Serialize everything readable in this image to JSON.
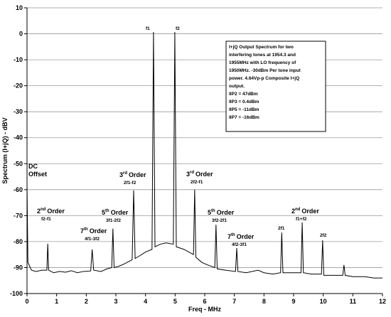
{
  "chart_data": {
    "type": "line",
    "x_label": "Freq - MHz",
    "y_label": "Spectrum (I+jQ) - dBV",
    "xlim": [
      0,
      12
    ],
    "xticks": [
      0,
      1,
      2,
      3,
      4,
      5,
      6,
      7,
      8,
      9,
      10,
      11,
      12
    ],
    "ylim": [
      -100,
      10
    ],
    "yticks": [
      10,
      0,
      -10,
      -20,
      -30,
      -40,
      -50,
      -60,
      -70,
      -80,
      -90,
      -100
    ],
    "grid": true,
    "series": [
      {
        "color": "#000000",
        "x": [
          0,
          0.03,
          0.15,
          0.3,
          0.5,
          0.67,
          0.7,
          0.73,
          0.9,
          1.1,
          1.3,
          1.5,
          1.7,
          1.9,
          2.15,
          2.2,
          2.25,
          2.5,
          2.7,
          2.86,
          2.9,
          2.94,
          3.1,
          3.3,
          3.55,
          3.6,
          3.65,
          3.8,
          4.0,
          4.22,
          4.27,
          4.32,
          4.5,
          4.7,
          4.94,
          4.99,
          5.04,
          5.3,
          5.62,
          5.66,
          5.7,
          5.9,
          6.1,
          6.34,
          6.38,
          6.42,
          6.7,
          7.04,
          7.08,
          7.12,
          7.4,
          7.8,
          8.0,
          8.3,
          8.56,
          8.6,
          8.64,
          8.9,
          9.25,
          9.29,
          9.33,
          9.6,
          9.94,
          9.98,
          10.02,
          10.3,
          10.66,
          10.7,
          10.74,
          11.0,
          11.4,
          11.7,
          12
        ],
        "values": [
          -58,
          -88,
          -91,
          -91.5,
          -91,
          -91,
          -80.8,
          -91,
          -92,
          -91.5,
          -91.8,
          -91.2,
          -92,
          -91.5,
          -91.3,
          -83,
          -91,
          -91.5,
          -90.5,
          -90,
          -75,
          -90,
          -89.5,
          -88.5,
          -87,
          -60.3,
          -86.5,
          -85.5,
          -84,
          -83,
          0.7,
          -82,
          -81,
          -80.5,
          -81,
          0.7,
          -82,
          -83,
          -85,
          -60,
          -86,
          -88,
          -89,
          -90,
          -73.5,
          -90.5,
          -91,
          -91.5,
          -82.5,
          -91.5,
          -92,
          -91,
          -92,
          -92.5,
          -92,
          -76.5,
          -92,
          -92,
          -92,
          -72.6,
          -92,
          -92.5,
          -92.5,
          -79.5,
          -93,
          -93,
          -93,
          -89,
          -93,
          -93.5,
          -93.5,
          -94,
          -94
        ]
      }
    ],
    "annotations": [
      {
        "lines": [
          "DC",
          "Offset"
        ]
      },
      {
        "order": "2",
        "suffix": "nd",
        "label": "Order",
        "term": "f2-f1"
      },
      {
        "order": "7",
        "suffix": "th",
        "label": "Order",
        "term": "4f1-3f2"
      },
      {
        "order": "5",
        "suffix": "th",
        "label": "Order",
        "term": "3f1-2f2"
      },
      {
        "order": "3",
        "suffix": "rd",
        "label": "Order",
        "term": "2f1-f2"
      },
      {
        "term": "f1"
      },
      {
        "term": "f2"
      },
      {
        "order": "3",
        "suffix": "rd",
        "label": "Order",
        "term": "2f2-f1"
      },
      {
        "order": "5",
        "suffix": "th",
        "label": "Order",
        "term": "3f2-2f1"
      },
      {
        "order": "7",
        "suffix": "th",
        "label": "Order",
        "term": "4f2-3f1"
      },
      {
        "term": "2f1"
      },
      {
        "order": "2",
        "suffix": "nd",
        "label": "Order",
        "term": "f1+f2"
      },
      {
        "term": "2f2"
      }
    ],
    "note_lines": [
      "I+jQ Output Spectrum for two",
      "interfering tones at 1954.3 and",
      "1955MHz with LO frequency of",
      "1950MHz. -30dBm Per tone input",
      "power. 4.64Vp-p Composite I+jQ",
      "output.",
      "IIP2 = 47dBm",
      "IIP3 = 0.4dBm",
      "IIP5 = -11dBm",
      "IIP7 = -16dBm"
    ]
  }
}
